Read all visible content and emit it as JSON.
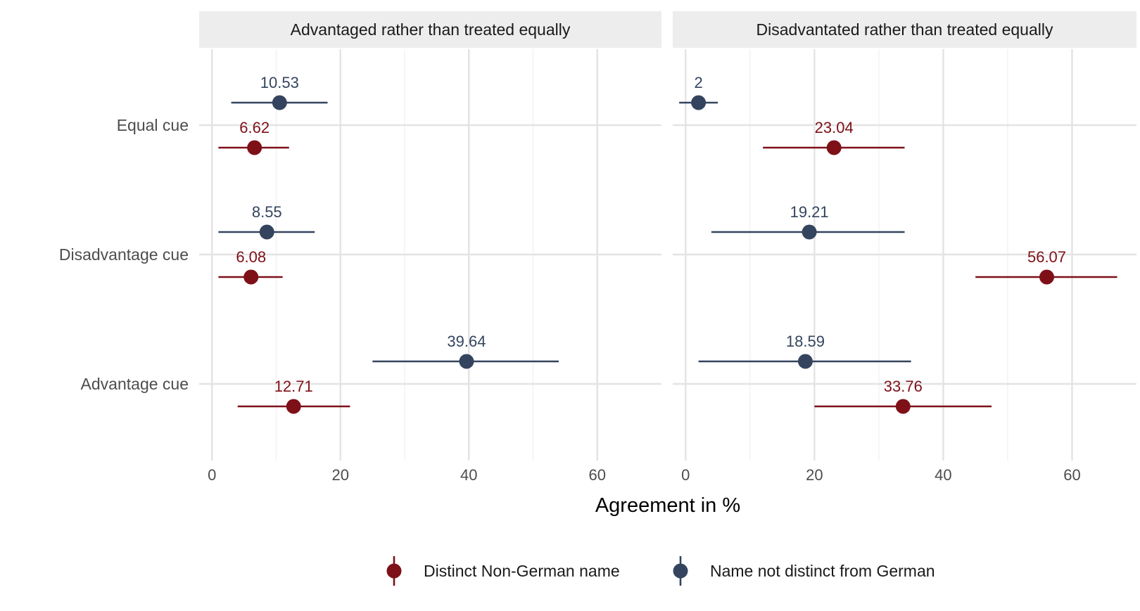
{
  "chart_data": {
    "type": "scatter",
    "subtype": "dot-and-whisker, faceted",
    "xlabel": "Agreement in %",
    "xlim": [
      -2,
      70
    ],
    "x_ticks": [
      0,
      20,
      40,
      60
    ],
    "categories": [
      "Equal cue",
      "Disadvantage cue",
      "Advantage cue"
    ],
    "grid": true,
    "legend_position": "bottom",
    "facets": [
      {
        "label": "Advantaged rather than treated equally",
        "series": [
          {
            "name": "Name not distinct from German",
            "color": "#34445e",
            "points": [
              {
                "category": "Equal cue",
                "value": 10.53,
                "label": "10.53",
                "ci": [
                  3,
                  18
                ]
              },
              {
                "category": "Disadvantage cue",
                "value": 8.55,
                "label": "8.55",
                "ci": [
                  1,
                  16
                ]
              },
              {
                "category": "Advantage cue",
                "value": 39.64,
                "label": "39.64",
                "ci": [
                  25,
                  54
                ]
              }
            ]
          },
          {
            "name": "Distinct Non-German name",
            "color": "#7e1018",
            "points": [
              {
                "category": "Equal cue",
                "value": 6.62,
                "label": "6.62",
                "ci": [
                  1,
                  12
                ]
              },
              {
                "category": "Disadvantage cue",
                "value": 6.08,
                "label": "6.08",
                "ci": [
                  1,
                  11
                ]
              },
              {
                "category": "Advantage cue",
                "value": 12.71,
                "label": "12.71",
                "ci": [
                  4,
                  21.5
                ]
              }
            ]
          }
        ]
      },
      {
        "label": "Disadvantated rather than treated equally",
        "series": [
          {
            "name": "Name not distinct from German",
            "color": "#34445e",
            "points": [
              {
                "category": "Equal cue",
                "value": 2,
                "label": "2",
                "ci": [
                  -1,
                  5
                ]
              },
              {
                "category": "Disadvantage cue",
                "value": 19.21,
                "label": "19.21",
                "ci": [
                  4,
                  34
                ]
              },
              {
                "category": "Advantage cue",
                "value": 18.59,
                "label": "18.59",
                "ci": [
                  2,
                  35
                ]
              }
            ]
          },
          {
            "name": "Distinct Non-German name",
            "color": "#7e1018",
            "points": [
              {
                "category": "Equal cue",
                "value": 23.04,
                "label": "23.04",
                "ci": [
                  12,
                  34
                ]
              },
              {
                "category": "Disadvantage cue",
                "value": 56.07,
                "label": "56.07",
                "ci": [
                  45,
                  67
                ]
              },
              {
                "category": "Advantage cue",
                "value": 33.76,
                "label": "33.76",
                "ci": [
                  20,
                  47.5
                ]
              }
            ]
          }
        ]
      }
    ],
    "legend": [
      {
        "name": "Distinct Non-German name",
        "color": "#7e1018"
      },
      {
        "name": "Name not distinct from German",
        "color": "#34445e"
      }
    ]
  }
}
